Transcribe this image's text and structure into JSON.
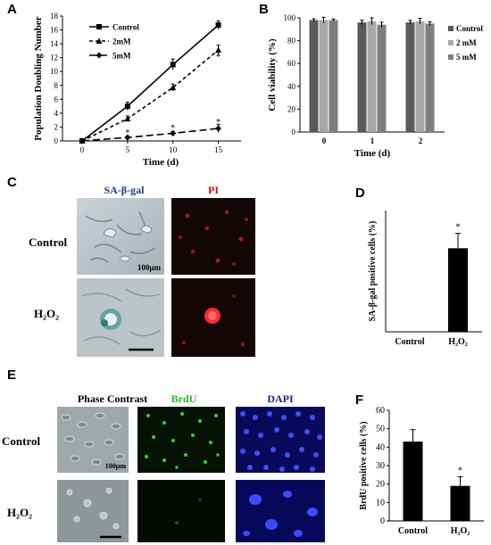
{
  "panels": {
    "A": "A",
    "B": "B",
    "C": "C",
    "D": "D",
    "E": "E",
    "F": "F"
  },
  "colors": {
    "blue_label": "#1f3a8a",
    "red_label": "#d01010",
    "green_label": "#22c022",
    "navy_label": "#22228a"
  },
  "chart_a": {
    "type": "line",
    "ylabel": "Population Doubling Number",
    "xlabel": "Time (d)",
    "x": [
      0,
      5,
      10,
      15
    ],
    "xticks": [
      "0",
      "5",
      "10",
      "15"
    ],
    "ylim": [
      0,
      18
    ],
    "yticks": [
      "0",
      "2",
      "4",
      "6",
      "8",
      "10",
      "12",
      "14",
      "16",
      "18"
    ],
    "series": [
      {
        "name": "Control",
        "values": [
          0,
          5.0,
          11.0,
          16.7
        ],
        "errors": [
          0,
          0.6,
          0.8,
          0.6
        ],
        "style": "solid-square"
      },
      {
        "name": "2mM",
        "values": [
          0,
          3.2,
          7.7,
          13.1
        ],
        "errors": [
          0,
          0.4,
          0.5,
          0.7
        ],
        "style": "dash-triangle"
      },
      {
        "name": "5mM",
        "values": [
          0,
          0.5,
          1.1,
          1.8
        ],
        "errors": [
          0,
          0.2,
          0.3,
          0.6
        ],
        "style": "longdash-diamond"
      }
    ],
    "stars": [
      {
        "text": "*",
        "x": 15,
        "y": 12.2
      },
      {
        "text": "*",
        "x": 5,
        "y": 1.3
      },
      {
        "text": "*",
        "x": 10,
        "y": 2.0
      },
      {
        "text": "*",
        "x": 15,
        "y": 2.8
      }
    ]
  },
  "chart_b": {
    "type": "bar",
    "ylabel": "Cell viability (%)",
    "xlabel": "Time (d)",
    "categories": [
      "0",
      "1",
      "2"
    ],
    "ylim": [
      0,
      100
    ],
    "yticks": [
      "0",
      "20",
      "40",
      "60",
      "80",
      "100"
    ],
    "series": [
      {
        "name": "Control",
        "values": [
          98,
          96,
          96
        ],
        "errors": [
          1.2,
          2.0,
          1.8
        ],
        "color": "#5a5a5a"
      },
      {
        "name": "2 mM",
        "values": [
          98,
          97,
          97
        ],
        "errors": [
          2.5,
          3.0,
          2.6
        ],
        "color": "#a8a8a8"
      },
      {
        "name": "5 mM",
        "values": [
          98,
          94,
          95
        ],
        "errors": [
          1.0,
          2.2,
          1.5
        ],
        "color": "#7e7e7e"
      }
    ]
  },
  "panel_c": {
    "col_labels": [
      "SA-β-gal",
      "PI"
    ],
    "row_labels": [
      "Control",
      "H₂O₂"
    ],
    "scale_label": "100μm"
  },
  "chart_d": {
    "type": "bar",
    "ylabel": "SA-β-gal positive cells (%)",
    "categories": [
      "Control",
      "H₂O₂"
    ],
    "values": [
      0,
      6.2
    ],
    "errors": [
      0,
      1.1
    ],
    "ylim": [
      0,
      9
    ],
    "star": "*"
  },
  "panel_e": {
    "col_labels": [
      "Phase Contrast",
      "BrdU",
      "DAPI"
    ],
    "row_labels": [
      "Control",
      "H₂O₂"
    ],
    "scale_label": "100μm"
  },
  "chart_f": {
    "type": "bar",
    "ylabel": "BrdU positive cells (%)",
    "categories": [
      "Control",
      "H₂O₂"
    ],
    "values": [
      43,
      19
    ],
    "errors": [
      6.5,
      5.0
    ],
    "ylim": [
      0,
      60
    ],
    "yticks": [
      "0",
      "10",
      "20",
      "30",
      "40",
      "50",
      "60"
    ],
    "star": "*"
  }
}
